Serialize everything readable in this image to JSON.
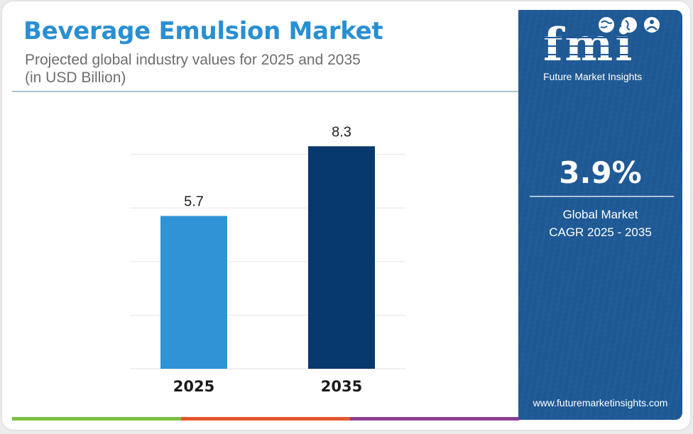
{
  "header": {
    "title": "Beverage Emulsion Market",
    "subtitle_line1": "Projected global industry values for 2025 and 2035",
    "subtitle_line2": "(in USD Billion)"
  },
  "brand": {
    "logo_text": "fmi",
    "logo_caption": "Future Market Insights",
    "website": "www.futuremarketinsights.com"
  },
  "stat": {
    "cagr_value": "3.9%",
    "cagr_label_line1": "Global Market",
    "cagr_label_line2": "CAGR 2025 - 2035"
  },
  "colors": {
    "title": "#2a8fd2",
    "bar_2025": "#2f93d6",
    "bar_2035": "#07386e",
    "side_panel": "#1f5a96",
    "footer_segments": [
      "#7cc043",
      "#e4572e",
      "#8b3f92"
    ]
  },
  "chart_data": {
    "type": "bar",
    "categories": [
      "2025",
      "2035"
    ],
    "values": [
      5.7,
      8.3
    ],
    "data_labels": [
      "5.7",
      "8.3"
    ],
    "bar_colors": [
      "#2f93d6",
      "#07386e"
    ],
    "title": "",
    "xlabel": "",
    "ylabel": "",
    "ylim": [
      0,
      10
    ],
    "grid": true,
    "legend": "none"
  }
}
